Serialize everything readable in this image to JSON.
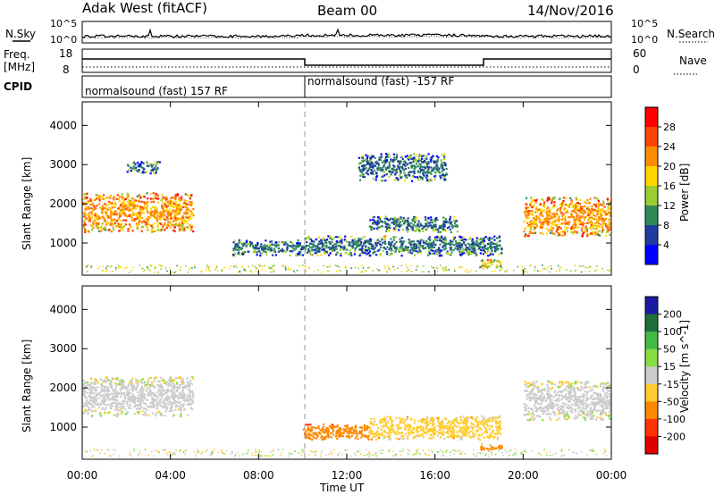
{
  "header": {
    "station": "Adak West (fitACF)",
    "beam": "Beam 00",
    "date": "14/Nov/2016"
  },
  "noise_panel": {
    "left_label": "N.Sky",
    "right_label": "N.Search",
    "left_ticks": [
      "10^5",
      "10^0"
    ],
    "right_ticks": [
      "10^5",
      "10^0"
    ]
  },
  "freq_panel": {
    "left_label_line1": "Freq.",
    "left_label_line2": "[MHz]",
    "left_ticks": [
      "18",
      "8"
    ],
    "right_label": "Nave",
    "right_ticks": [
      "60",
      "0"
    ]
  },
  "cpid_panel": {
    "label": "CPID",
    "segments": [
      "normalsound (fast) 157 RF",
      "normalsound (fast) -157 RF"
    ]
  },
  "range_axis": {
    "label": "Slant Range [km]",
    "ticks": [
      "4000",
      "3000",
      "2000",
      "1000"
    ]
  },
  "time_axis": {
    "label": "Time UT",
    "ticks": [
      "00:00",
      "04:00",
      "08:00",
      "12:00",
      "16:00",
      "20:00",
      "00:00"
    ]
  },
  "power_colorbar": {
    "label": "Power [dB]",
    "ticks": [
      "28",
      "24",
      "20",
      "16",
      "12",
      "8",
      "4"
    ],
    "colors": [
      "#ff0000",
      "#ff4400",
      "#ff8c00",
      "#ffd700",
      "#9acd32",
      "#2e8b57",
      "#1e3c9f",
      "#0000ff"
    ]
  },
  "velocity_colorbar": {
    "label": "Velocity [m s^-1]",
    "ticks": [
      "200",
      "100",
      "50",
      "15",
      "-15",
      "-50",
      "-100",
      "-200"
    ],
    "colors": [
      "#1a1aa0",
      "#1f6f3a",
      "#44bb44",
      "#88dd44",
      "#cccccc",
      "#ffcc33",
      "#ff8800",
      "#ff3300",
      "#dd0000"
    ]
  },
  "chart_data": {
    "type": "heatmap",
    "title": "Adak West (fitACF)",
    "xlabel": "Time UT",
    "ylabel": "Slant Range [km]",
    "xlim": [
      "00:00",
      "24:00"
    ],
    "ylim": [
      180,
      4600
    ],
    "grid": false,
    "panels": [
      {
        "quantity": "Power",
        "units": "dB",
        "colorbar_range": [
          0,
          30
        ],
        "echo_regions": [
          {
            "t_start": 0.0,
            "t_end": 5.0,
            "range_low": 1300,
            "range_high": 2300,
            "dominant_value": 20
          },
          {
            "t_start": 6.8,
            "t_end": 10.0,
            "range_low": 700,
            "range_high": 1100,
            "dominant_value": 8
          },
          {
            "t_start": 10.0,
            "t_end": 19.0,
            "range_low": 700,
            "range_high": 1200,
            "dominant_value": 8
          },
          {
            "t_start": 13.0,
            "t_end": 17.0,
            "range_low": 1300,
            "range_high": 1700,
            "dominant_value": 8
          },
          {
            "t_start": 18.0,
            "t_end": 19.0,
            "range_low": 400,
            "range_high": 600,
            "dominant_value": 16
          },
          {
            "t_start": 20.0,
            "t_end": 24.0,
            "range_low": 1200,
            "range_high": 2200,
            "dominant_value": 20
          },
          {
            "t_start": 2.0,
            "t_end": 3.5,
            "range_low": 2800,
            "range_high": 3100,
            "dominant_value": 8
          },
          {
            "t_start": 12.5,
            "t_end": 16.5,
            "range_low": 2600,
            "range_high": 3300,
            "dominant_value": 8
          }
        ]
      },
      {
        "quantity": "Velocity",
        "units": "m s^-1",
        "colorbar_range": [
          -200,
          200
        ],
        "echo_regions": [
          {
            "t_start": 0.0,
            "t_end": 5.0,
            "range_low": 1300,
            "range_high": 2300,
            "dominant_value": 0
          },
          {
            "t_start": 10.0,
            "t_end": 13.0,
            "range_low": 700,
            "range_high": 1100,
            "dominant_value": -80
          },
          {
            "t_start": 13.0,
            "t_end": 19.0,
            "range_low": 700,
            "range_high": 1300,
            "dominant_value": -30
          },
          {
            "t_start": 18.0,
            "t_end": 19.0,
            "range_low": 400,
            "range_high": 600,
            "dominant_value": -60
          },
          {
            "t_start": 20.0,
            "t_end": 24.0,
            "range_low": 1200,
            "range_high": 2200,
            "dominant_value": 0
          }
        ]
      }
    ]
  }
}
